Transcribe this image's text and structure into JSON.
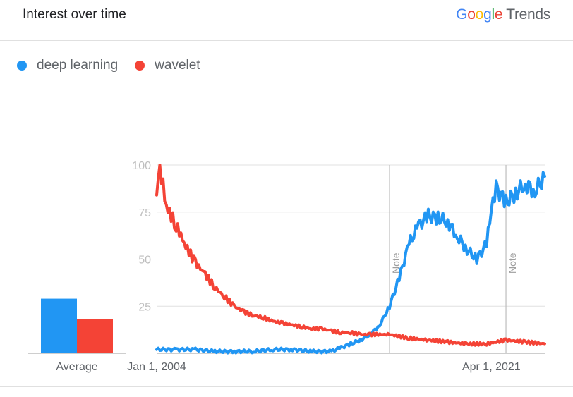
{
  "header": {
    "title": "Interest over time",
    "brand_letters": [
      "G",
      "o",
      "o",
      "g",
      "l",
      "e"
    ],
    "brand_word": "Trends"
  },
  "chart_data": {
    "type": "line",
    "ylim": [
      0,
      100
    ],
    "yticks": [
      "100",
      "75",
      "50",
      "25"
    ],
    "xrange": [
      "2004-01-01",
      "2024-01-01"
    ],
    "xticks": [
      {
        "date": "2004-01-01",
        "label": "Jan 1, 2004"
      },
      {
        "date": "2021-04-01",
        "label": "Apr 1, 2021"
      }
    ],
    "notes": [
      {
        "date": "2016-01-01",
        "label": "Note"
      },
      {
        "date": "2022-01-01",
        "label": "Note"
      }
    ],
    "grid": true,
    "legend_position": "top-left",
    "series": [
      {
        "name": "deep learning",
        "color": "#2196f3",
        "x": [
          "2004-01-01",
          "2005-01-01",
          "2006-01-01",
          "2007-01-01",
          "2008-01-01",
          "2009-01-01",
          "2010-01-01",
          "2011-01-01",
          "2012-01-01",
          "2013-01-01",
          "2013-07-01",
          "2014-01-01",
          "2014-07-01",
          "2015-01-01",
          "2015-07-01",
          "2016-01-01",
          "2016-07-01",
          "2017-01-01",
          "2017-07-01",
          "2018-01-01",
          "2018-07-01",
          "2019-01-01",
          "2019-07-01",
          "2020-01-01",
          "2020-07-01",
          "2021-01-01",
          "2021-04-01",
          "2021-07-01",
          "2022-01-01",
          "2022-07-01",
          "2023-01-01",
          "2023-07-01",
          "2024-01-01"
        ],
        "values": [
          2,
          2,
          2,
          1,
          1,
          1,
          2,
          2,
          1,
          1,
          3,
          5,
          7,
          10,
          15,
          25,
          40,
          58,
          68,
          73,
          72,
          70,
          62,
          55,
          50,
          58,
          75,
          88,
          80,
          85,
          90,
          86,
          94
        ]
      },
      {
        "name": "wavelet",
        "color": "#f44336",
        "x": [
          "2004-01-01",
          "2004-03-01",
          "2004-07-01",
          "2005-01-01",
          "2005-07-01",
          "2006-01-01",
          "2006-07-01",
          "2007-01-01",
          "2007-07-01",
          "2008-01-01",
          "2008-07-01",
          "2009-01-01",
          "2009-07-01",
          "2010-01-01",
          "2010-07-01",
          "2011-01-01",
          "2011-07-01",
          "2012-01-01",
          "2012-07-01",
          "2013-01-01",
          "2013-07-01",
          "2014-01-01",
          "2014-07-01",
          "2015-01-01",
          "2016-01-01",
          "2017-01-01",
          "2018-01-01",
          "2019-01-01",
          "2020-01-01",
          "2021-01-01",
          "2021-07-01",
          "2022-01-01",
          "2023-01-01",
          "2024-01-01"
        ],
        "values": [
          84,
          100,
          78,
          68,
          57,
          48,
          42,
          35,
          30,
          25,
          22,
          20,
          19,
          17,
          16,
          15,
          14,
          13,
          13,
          12,
          11,
          11,
          10,
          10,
          10,
          8,
          7,
          6,
          5,
          5,
          6,
          7,
          6,
          5
        ]
      }
    ],
    "average_bars": {
      "label": "Average",
      "values": [
        29,
        18
      ]
    }
  }
}
